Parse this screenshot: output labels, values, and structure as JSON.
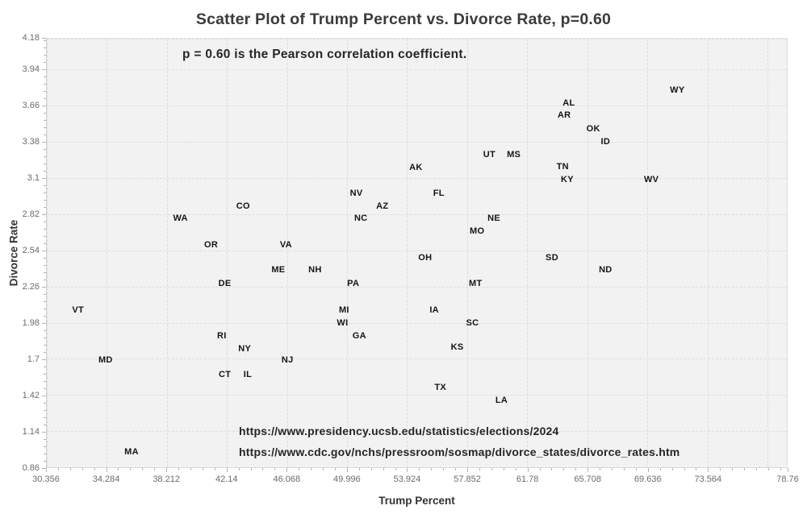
{
  "figure": {
    "title": "Scatter Plot of Trump Percent vs. Divorce Rate, p=0.60",
    "annotation": "p = 0.60 is the Pearson correlation coefficient.",
    "source_lines": [
      "https://www.presidency.ucsb.edu/statistics/elections/2024",
      "https://www.cdc.gov/nchs/pressroom/sosmap/divorce_states/divorce_rates.htm"
    ]
  },
  "colors": {
    "page_background": "#ffffff",
    "plot_background": "#f2f2f2",
    "gridline": "#dcdcdc",
    "tick": "#b3b3b3",
    "tick_label": "#6b6b6b",
    "title": "#3b3b3b",
    "axis_label": "#333333",
    "point_label": "#141414",
    "annotation_text": "#262626"
  },
  "chart_data": {
    "type": "scatter",
    "title": "Scatter Plot of Trump Percent vs. Divorce Rate, p=0.60",
    "xlabel": "Trump Percent",
    "ylabel": "Divorce Rate",
    "xlim": [
      30.356,
      78.76
    ],
    "ylim": [
      0.86,
      4.18
    ],
    "x_tick_labels": [
      "30.356",
      "34.284",
      "38.212",
      "42.14",
      "46.068",
      "49.996",
      "53.924",
      "57.852",
      "61.78",
      "65.708",
      "69.636",
      "73.564",
      "78.76"
    ],
    "y_tick_labels": [
      "0.86",
      "1.14",
      "1.42",
      "1.7",
      "1.98",
      "2.26",
      "2.54",
      "2.82",
      "3.1",
      "3.38",
      "3.66",
      "3.94",
      "4.18"
    ],
    "extra_x_gridlines": [
      77.492
    ],
    "grid": true,
    "legend": false,
    "marker_style": "state-abbreviation-text",
    "annotation": "p = 0.60 is the Pearson correlation coefficient.",
    "points": [
      {
        "state": "WY",
        "x": 71.6,
        "y": 3.78
      },
      {
        "state": "AL",
        "x": 64.5,
        "y": 3.68
      },
      {
        "state": "AR",
        "x": 64.2,
        "y": 3.59
      },
      {
        "state": "OK",
        "x": 66.1,
        "y": 3.48
      },
      {
        "state": "ID",
        "x": 66.9,
        "y": 3.38
      },
      {
        "state": "UT",
        "x": 59.3,
        "y": 3.28
      },
      {
        "state": "MS",
        "x": 60.9,
        "y": 3.28
      },
      {
        "state": "AK",
        "x": 54.5,
        "y": 3.18
      },
      {
        "state": "TN",
        "x": 64.1,
        "y": 3.19
      },
      {
        "state": "KY",
        "x": 64.4,
        "y": 3.09
      },
      {
        "state": "WV",
        "x": 69.9,
        "y": 3.09
      },
      {
        "state": "NV",
        "x": 50.6,
        "y": 2.98
      },
      {
        "state": "FL",
        "x": 56.0,
        "y": 2.98
      },
      {
        "state": "CO",
        "x": 43.2,
        "y": 2.88
      },
      {
        "state": "AZ",
        "x": 52.3,
        "y": 2.88
      },
      {
        "state": "WA",
        "x": 39.1,
        "y": 2.79
      },
      {
        "state": "NC",
        "x": 50.9,
        "y": 2.79
      },
      {
        "state": "NE",
        "x": 59.6,
        "y": 2.79
      },
      {
        "state": "MO",
        "x": 58.5,
        "y": 2.69
      },
      {
        "state": "OR",
        "x": 41.1,
        "y": 2.58
      },
      {
        "state": "VA",
        "x": 46.0,
        "y": 2.58
      },
      {
        "state": "OH",
        "x": 55.1,
        "y": 2.48
      },
      {
        "state": "SD",
        "x": 63.4,
        "y": 2.48
      },
      {
        "state": "ME",
        "x": 45.5,
        "y": 2.39
      },
      {
        "state": "NH",
        "x": 47.9,
        "y": 2.39
      },
      {
        "state": "ND",
        "x": 66.9,
        "y": 2.39
      },
      {
        "state": "DE",
        "x": 42.0,
        "y": 2.28
      },
      {
        "state": "PA",
        "x": 50.4,
        "y": 2.28
      },
      {
        "state": "MT",
        "x": 58.4,
        "y": 2.28
      },
      {
        "state": "VT",
        "x": 32.4,
        "y": 2.08
      },
      {
        "state": "MI",
        "x": 49.8,
        "y": 2.08
      },
      {
        "state": "IA",
        "x": 55.7,
        "y": 2.08
      },
      {
        "state": "WI",
        "x": 49.7,
        "y": 1.98
      },
      {
        "state": "SC",
        "x": 58.2,
        "y": 1.98
      },
      {
        "state": "RI",
        "x": 41.8,
        "y": 1.88
      },
      {
        "state": "GA",
        "x": 50.8,
        "y": 1.88
      },
      {
        "state": "NY",
        "x": 43.3,
        "y": 1.78
      },
      {
        "state": "KS",
        "x": 57.2,
        "y": 1.79
      },
      {
        "state": "MD",
        "x": 34.2,
        "y": 1.69
      },
      {
        "state": "NJ",
        "x": 46.1,
        "y": 1.69
      },
      {
        "state": "CT",
        "x": 42.0,
        "y": 1.58
      },
      {
        "state": "IL",
        "x": 43.5,
        "y": 1.58
      },
      {
        "state": "TX",
        "x": 56.1,
        "y": 1.48
      },
      {
        "state": "LA",
        "x": 60.1,
        "y": 1.38
      },
      {
        "state": "MA",
        "x": 35.9,
        "y": 0.98
      }
    ]
  }
}
